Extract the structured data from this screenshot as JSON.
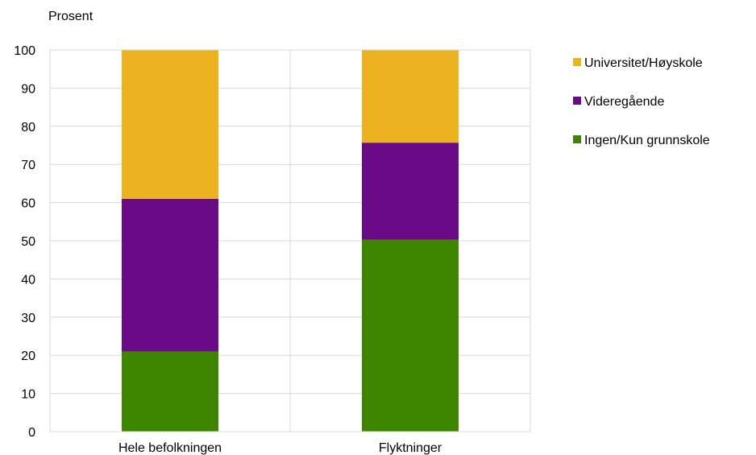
{
  "chart_data": {
    "type": "bar",
    "stacked": true,
    "ylabel": "Prosent",
    "ylim": [
      0,
      100
    ],
    "yticks": [
      0,
      10,
      20,
      30,
      40,
      50,
      60,
      70,
      80,
      90,
      100
    ],
    "grid": true,
    "legend_position": "right",
    "categories": [
      "Hele befolkningen",
      "Flyktninger"
    ],
    "series": [
      {
        "name": "Ingen/Kun grunnskole",
        "color": "#3e8600",
        "values": [
          21,
          50.3
        ]
      },
      {
        "name": "Videregående",
        "color": "#6b0a87",
        "values": [
          40,
          25.4
        ]
      },
      {
        "name": "Universitet/Høyskole",
        "color": "#ecb21f",
        "values": [
          39,
          24.3
        ]
      }
    ],
    "legend_order": [
      2,
      1,
      0
    ]
  }
}
